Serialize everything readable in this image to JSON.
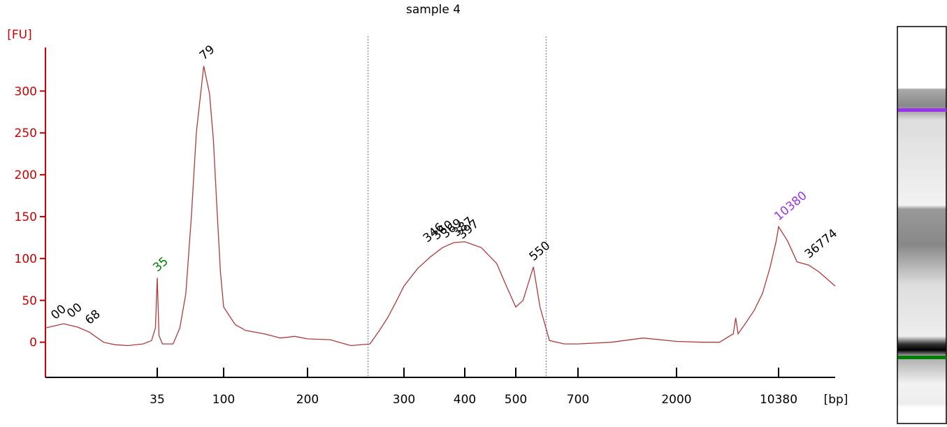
{
  "chart_data": {
    "type": "line",
    "title": "sample 4",
    "y_unit": "[FU]",
    "x_unit": "[bp]",
    "xscale": "log",
    "xlim": [
      6,
      26000
    ],
    "xticks": [
      35,
      100,
      200,
      300,
      400,
      500,
      700,
      2000,
      10380
    ],
    "ylim": [
      -42,
      352
    ],
    "yticks": [
      0,
      50,
      100,
      150,
      200,
      250,
      300
    ],
    "axis_color": "#cc0000",
    "series": [
      {
        "color": "#b03a3a",
        "x": [
          6,
          8,
          10,
          12,
          15,
          18,
          22,
          28,
          32,
          34,
          35,
          36,
          38,
          45,
          50,
          55,
          60,
          65,
          70,
          73,
          80,
          85,
          90,
          95,
          100,
          110,
          120,
          140,
          160,
          180,
          200,
          220,
          240,
          260,
          270,
          280,
          290,
          300,
          320,
          340,
          360,
          380,
          400,
          430,
          460,
          480,
          500,
          520,
          550,
          570,
          600,
          650,
          700,
          1000,
          1400,
          2000,
          3000,
          4000,
          5000,
          5200,
          5400,
          6000,
          7000,
          8000,
          9000,
          10000,
          10380,
          12000,
          14000,
          17000,
          20000,
          26000
        ],
        "values": [
          17,
          22,
          18,
          12,
          0,
          -3,
          -4,
          -2,
          2,
          17,
          77,
          8,
          -2,
          -2,
          17,
          58,
          150,
          251,
          301,
          330,
          297,
          242,
          159,
          84,
          42,
          21,
          14,
          10,
          5,
          7,
          4,
          3,
          -4,
          -2,
          13,
          29,
          48,
          67,
          88,
          102,
          113,
          119,
          120,
          113,
          94,
          67,
          42,
          50,
          90,
          42,
          2,
          -2,
          -2,
          0,
          5,
          1,
          0,
          0,
          10,
          29,
          10,
          21,
          38,
          58,
          88,
          121,
          138,
          121,
          96,
          92,
          84,
          67
        ]
      }
    ],
    "peak_labels": [
      {
        "text": "00",
        "x": 7,
        "y": 20,
        "color": "#000000"
      },
      {
        "text": "00",
        "x": 9,
        "y": 22,
        "color": "#000000"
      },
      {
        "text": "68",
        "x": 12,
        "y": 14,
        "color": "#000000"
      },
      {
        "text": "35",
        "x": 35,
        "y": 77,
        "color": "#008000"
      },
      {
        "text": "79",
        "x": 73,
        "y": 330,
        "color": "#000000"
      },
      {
        "text": "346",
        "x": 335,
        "y": 112,
        "color": "#000000"
      },
      {
        "text": "360",
        "x": 350,
        "y": 115,
        "color": "#000000"
      },
      {
        "text": "369",
        "x": 365,
        "y": 117,
        "color": "#000000"
      },
      {
        "text": "387",
        "x": 385,
        "y": 119,
        "color": "#000000"
      },
      {
        "text": "397",
        "x": 395,
        "y": 116,
        "color": "#000000"
      },
      {
        "text": "550",
        "x": 550,
        "y": 90,
        "color": "#000000"
      },
      {
        "text": "10380",
        "x": 10380,
        "y": 138,
        "color": "#9933ee"
      },
      {
        "text": "36774",
        "x": 17000,
        "y": 93,
        "color": "#000000"
      }
    ],
    "region_lines": [
      258,
      589
    ]
  }
}
